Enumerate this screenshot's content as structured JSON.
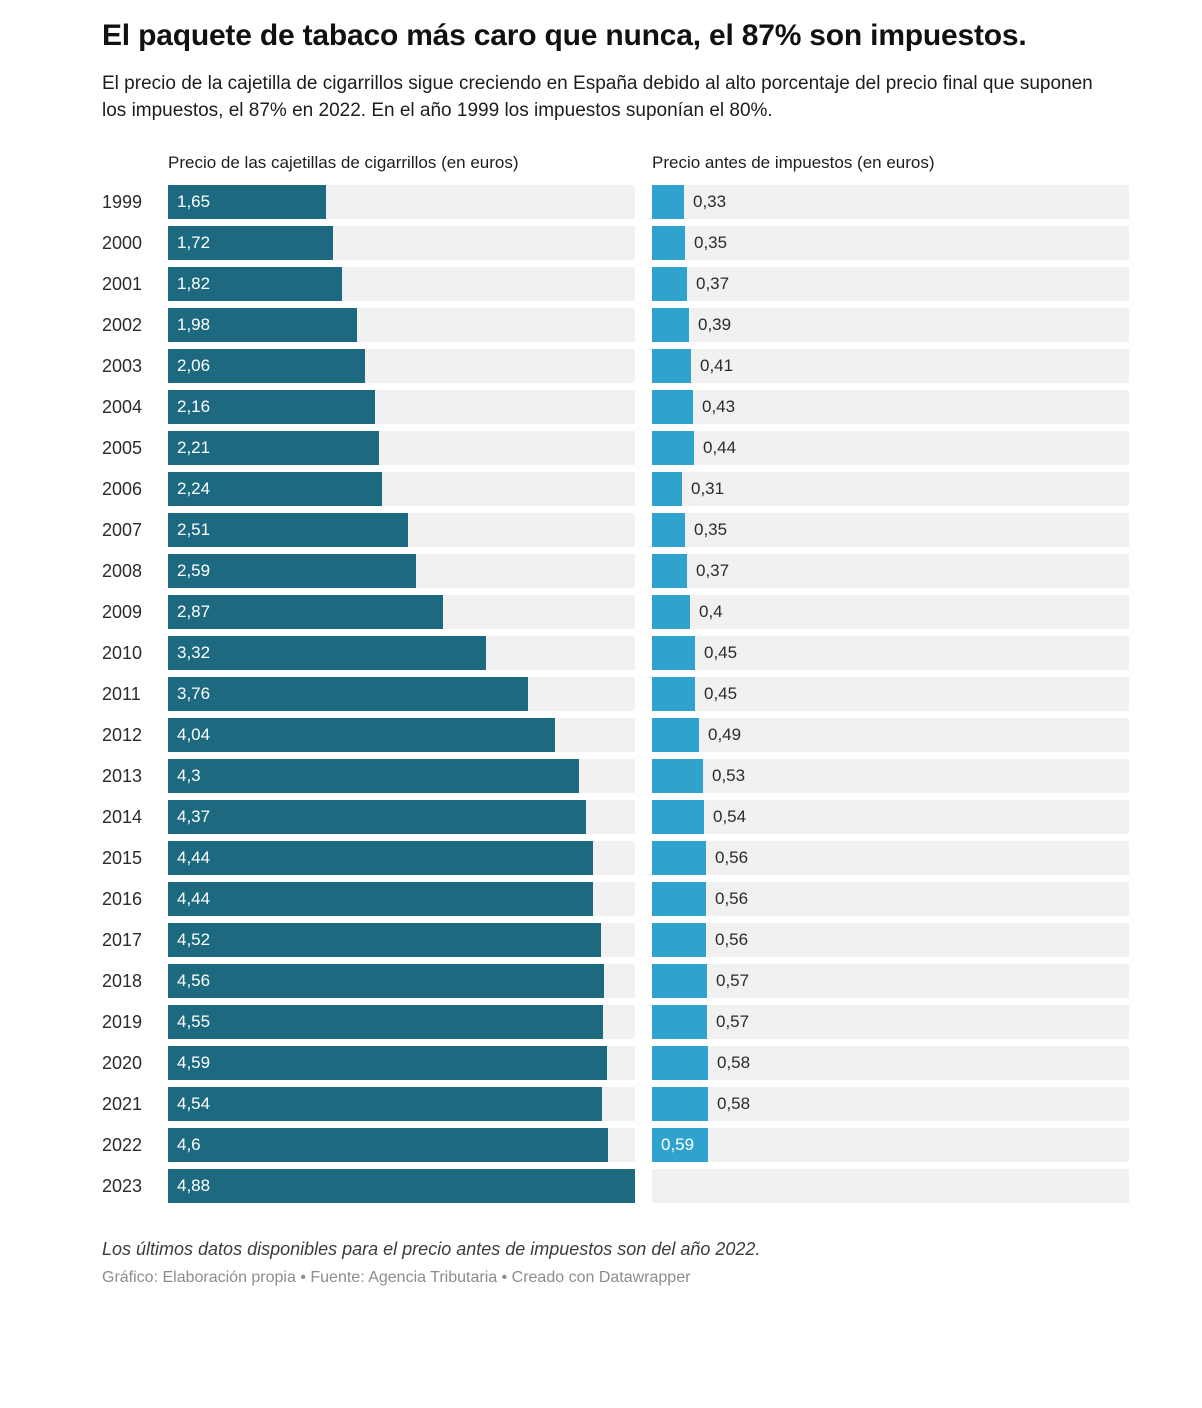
{
  "header": {
    "title": "El paquete de tabaco más caro que nunca, el 87% son impuestos.",
    "subtitle": "El precio de la cajetilla de cigarrillos sigue creciendo en España debido al alto porcentaje del precio final que suponen los impuestos, el 87% en 2022. En el año 1999 los impuestos suponían el 80%."
  },
  "footer": {
    "note": "Los últimos datos disponibles para el precio antes de impuestos son del año 2022.",
    "credit": "Gráfico: Elaboración propia • Fuente: Agencia Tributaria • Creado con Datawrapper"
  },
  "chart_data": {
    "type": "bar",
    "orientation": "horizontal",
    "axis_max": 4.88,
    "track_color": "#f1f1f1",
    "categories": [
      "1999",
      "2000",
      "2001",
      "2002",
      "2003",
      "2004",
      "2005",
      "2006",
      "2007",
      "2008",
      "2009",
      "2010",
      "2011",
      "2012",
      "2013",
      "2014",
      "2015",
      "2016",
      "2017",
      "2018",
      "2019",
      "2020",
      "2021",
      "2022",
      "2023"
    ],
    "series": [
      {
        "name": "Precio de las cajetillas de cigarrillos (en euros)",
        "color": "#1d6a80",
        "values": [
          1.65,
          1.72,
          1.82,
          1.98,
          2.06,
          2.16,
          2.21,
          2.24,
          2.51,
          2.59,
          2.87,
          3.32,
          3.76,
          4.04,
          4.3,
          4.37,
          4.44,
          4.44,
          4.52,
          4.56,
          4.55,
          4.59,
          4.54,
          4.6,
          4.88
        ],
        "labels": [
          "1,65",
          "1,72",
          "1,82",
          "1,98",
          "2,06",
          "2,16",
          "2,21",
          "2,24",
          "2,51",
          "2,59",
          "2,87",
          "3,32",
          "3,76",
          "4,04",
          "4,3",
          "4,37",
          "4,44",
          "4,44",
          "4,52",
          "4,56",
          "4,55",
          "4,59",
          "4,54",
          "4,6",
          "4,88"
        ],
        "label_position": "inside"
      },
      {
        "name": "Precio antes de impuestos (en euros)",
        "color": "#2fa3cd",
        "values": [
          0.33,
          0.35,
          0.37,
          0.39,
          0.41,
          0.43,
          0.44,
          0.31,
          0.35,
          0.37,
          0.4,
          0.45,
          0.45,
          0.49,
          0.53,
          0.54,
          0.56,
          0.56,
          0.56,
          0.57,
          0.57,
          0.58,
          0.58,
          0.59,
          null
        ],
        "labels": [
          "0,33",
          "0,35",
          "0,37",
          "0,39",
          "0,41",
          "0,43",
          "0,44",
          "0,31",
          "0,35",
          "0,37",
          "0,4",
          "0,45",
          "0,45",
          "0,49",
          "0,53",
          "0,54",
          "0,56",
          "0,56",
          "0,56",
          "0,57",
          "0,57",
          "0,58",
          "0,58",
          "0,59",
          null
        ],
        "label_position": "outside",
        "label_inside_indices": [
          23
        ]
      }
    ]
  }
}
